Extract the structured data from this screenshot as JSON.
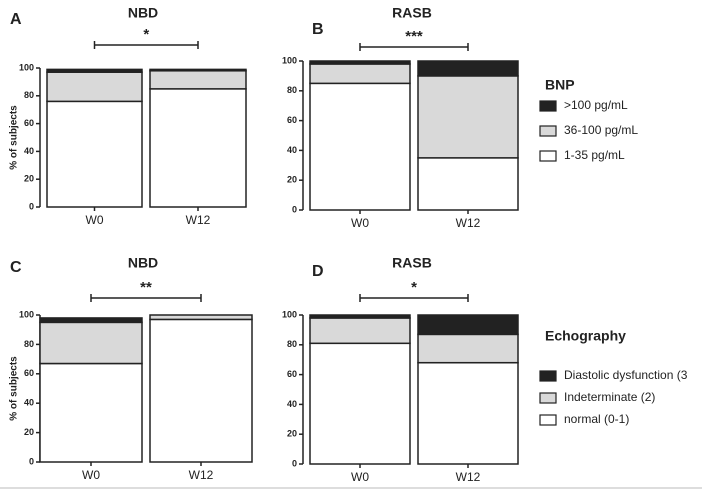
{
  "chart_data": [
    {
      "type": "stacked-bar",
      "panel": "A",
      "title": "NBD",
      "significance": "*",
      "ylabel": "% of subjects",
      "categories": [
        "W0",
        "W12"
      ],
      "ylim": [
        0,
        100
      ],
      "yticks": [
        0,
        20,
        40,
        60,
        80,
        100
      ],
      "series": [
        {
          "name": "1-35 pg/mL",
          "color": "#ffffff",
          "values": [
            76,
            85
          ]
        },
        {
          "name": "36-100 pg/mL",
          "color": "#d9d9d9",
          "values": [
            21,
            13
          ]
        },
        {
          "name": ">100 pg/mL",
          "color": "#222222",
          "values": [
            2,
            1
          ]
        }
      ]
    },
    {
      "type": "stacked-bar",
      "panel": "B",
      "title": "RASB",
      "significance": "***",
      "legend_title": "BNP",
      "categories": [
        "W0",
        "W12"
      ],
      "ylim": [
        0,
        100
      ],
      "yticks": [
        0,
        20,
        40,
        60,
        80,
        100
      ],
      "series": [
        {
          "name": "1-35 pg/mL",
          "color": "#ffffff",
          "values": [
            85,
            35
          ]
        },
        {
          "name": "36-100 pg/mL",
          "color": "#d9d9d9",
          "values": [
            13,
            55
          ]
        },
        {
          "name": ">100 pg/mL",
          "color": "#222222",
          "values": [
            2,
            10
          ]
        }
      ]
    },
    {
      "type": "stacked-bar",
      "panel": "C",
      "title": "NBD",
      "significance": "**",
      "ylabel": "% of subjects",
      "categories": [
        "W0",
        "W12"
      ],
      "ylim": [
        0,
        100
      ],
      "yticks": [
        0,
        20,
        40,
        60,
        80,
        100
      ],
      "series": [
        {
          "name": "normal (0-1)",
          "color": "#ffffff",
          "values": [
            67,
            97
          ]
        },
        {
          "name": "Indeterminate (2)",
          "color": "#d9d9d9",
          "values": [
            28,
            3
          ]
        },
        {
          "name": "Diastolic dysfunction (3",
          "color": "#222222",
          "values": [
            3,
            0
          ]
        }
      ]
    },
    {
      "type": "stacked-bar",
      "panel": "D",
      "title": "RASB",
      "significance": "*",
      "legend_title": "Echography",
      "categories": [
        "W0",
        "W12"
      ],
      "ylim": [
        0,
        100
      ],
      "yticks": [
        0,
        20,
        40,
        60,
        80,
        100
      ],
      "series": [
        {
          "name": "normal (0-1)",
          "color": "#ffffff",
          "values": [
            81,
            68
          ]
        },
        {
          "name": "Indeterminate (2)",
          "color": "#d9d9d9",
          "values": [
            17,
            19
          ]
        },
        {
          "name": "Diastolic dysfunction (3",
          "color": "#222222",
          "values": [
            2,
            13
          ]
        }
      ]
    }
  ]
}
